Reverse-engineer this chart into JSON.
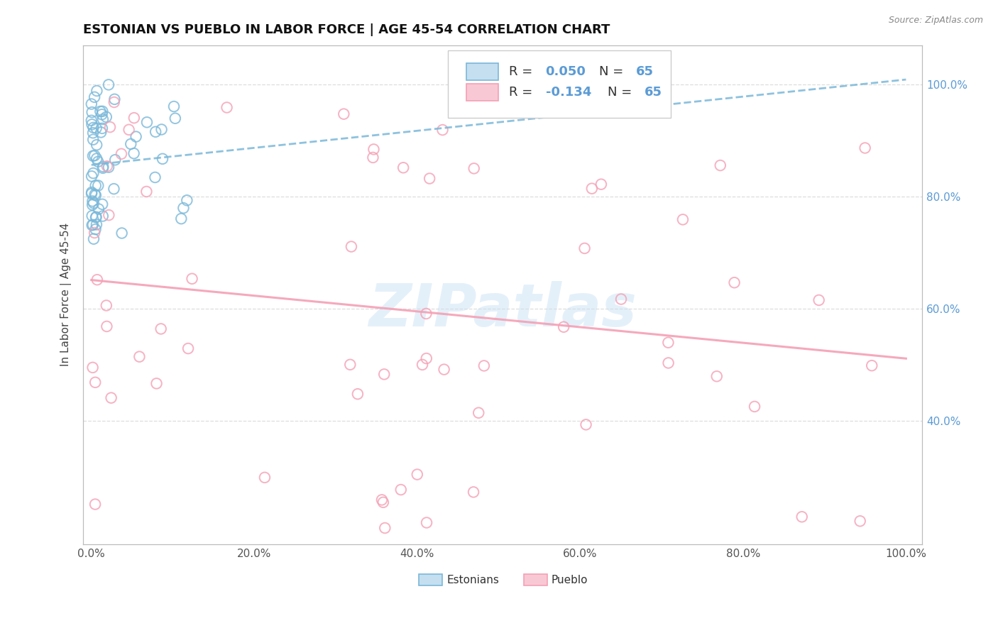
{
  "title": "ESTONIAN VS PUEBLO IN LABOR FORCE | AGE 45-54 CORRELATION CHART",
  "ylabel": "In Labor Force | Age 45-54",
  "source": "Source: ZipAtlas.com",
  "r_estonian": 0.05,
  "r_pueblo": -0.134,
  "n_estonian": 65,
  "n_pueblo": 65,
  "estonian_color": "#7ab8d9",
  "pueblo_color": "#f4a0b5",
  "background_color": "#ffffff",
  "grid_color": "#dddddd",
  "watermark": "ZIPatlas",
  "ytick_values": [
    0.4,
    0.6,
    0.8,
    1.0
  ],
  "ytick_labels": [
    "40.0%",
    "60.0%",
    "80.0%",
    "100.0%"
  ],
  "xtick_values": [
    0.0,
    0.2,
    0.4,
    0.6,
    0.8,
    1.0
  ],
  "xtick_labels": [
    "0.0%",
    "20.0%",
    "40.0%",
    "60.0%",
    "80.0%",
    "100.0%"
  ],
  "ylim": [
    0.18,
    1.07
  ],
  "xlim": [
    -0.01,
    1.02
  ]
}
